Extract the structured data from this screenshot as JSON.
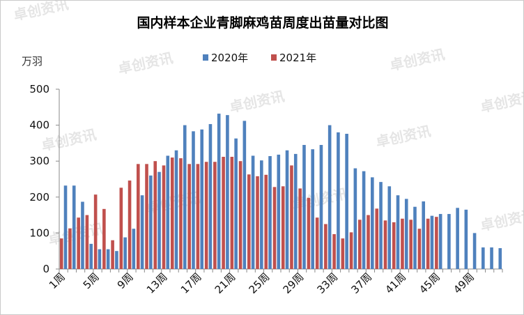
{
  "chart_data": {
    "type": "bar",
    "title": "国内样本企业青脚麻鸡苗周度出苗量对比图",
    "ylabel": "万羽",
    "ylim": [
      0,
      500
    ],
    "yticks": [
      0,
      100,
      200,
      300,
      400,
      500
    ],
    "grid": false,
    "legend_position": "top",
    "categories": [
      "1周",
      "2周",
      "3周",
      "4周",
      "5周",
      "6周",
      "7周",
      "8周",
      "9周",
      "10周",
      "11周",
      "12周",
      "13周",
      "14周",
      "15周",
      "16周",
      "17周",
      "18周",
      "19周",
      "20周",
      "21周",
      "22周",
      "23周",
      "24周",
      "25周",
      "26周",
      "27周",
      "28周",
      "29周",
      "30周",
      "31周",
      "32周",
      "33周",
      "34周",
      "35周",
      "36周",
      "37周",
      "38周",
      "39周",
      "40周",
      "41周",
      "42周",
      "43周",
      "44周",
      "45周",
      "46周",
      "47周",
      "48周",
      "49周",
      "50周",
      "51周",
      "52周"
    ],
    "tick_labels": [
      "1周",
      "5周",
      "9周",
      "13周",
      "17周",
      "21周",
      "25周",
      "29周",
      "33周",
      "37周",
      "41周",
      "45周",
      "49周"
    ],
    "series": [
      {
        "name": "2020年",
        "color": "#4f81bd",
        "values": [
          232,
          232,
          187,
          70,
          55,
          55,
          50,
          88,
          112,
          205,
          260,
          270,
          315,
          330,
          400,
          383,
          388,
          403,
          432,
          428,
          363,
          412,
          315,
          302,
          314,
          318,
          330,
          320,
          345,
          333,
          345,
          400,
          380,
          376,
          280,
          272,
          255,
          242,
          230,
          205,
          195,
          173,
          188,
          148,
          153,
          153,
          170,
          165,
          100,
          60,
          60,
          58
        ]
      },
      {
        "name": "2021年",
        "color": "#c0504d",
        "values": [
          85,
          113,
          143,
          150,
          207,
          167,
          80,
          226,
          246,
          292,
          292,
          300,
          288,
          310,
          308,
          292,
          292,
          298,
          298,
          312,
          312,
          300,
          263,
          258,
          262,
          228,
          230,
          288,
          224,
          198,
          143,
          125,
          97,
          85,
          102,
          137,
          150,
          168,
          135,
          130,
          140,
          137,
          112,
          140,
          145,
          null,
          null,
          null,
          null,
          null,
          null,
          null
        ]
      }
    ]
  },
  "watermark": "卓创资讯"
}
